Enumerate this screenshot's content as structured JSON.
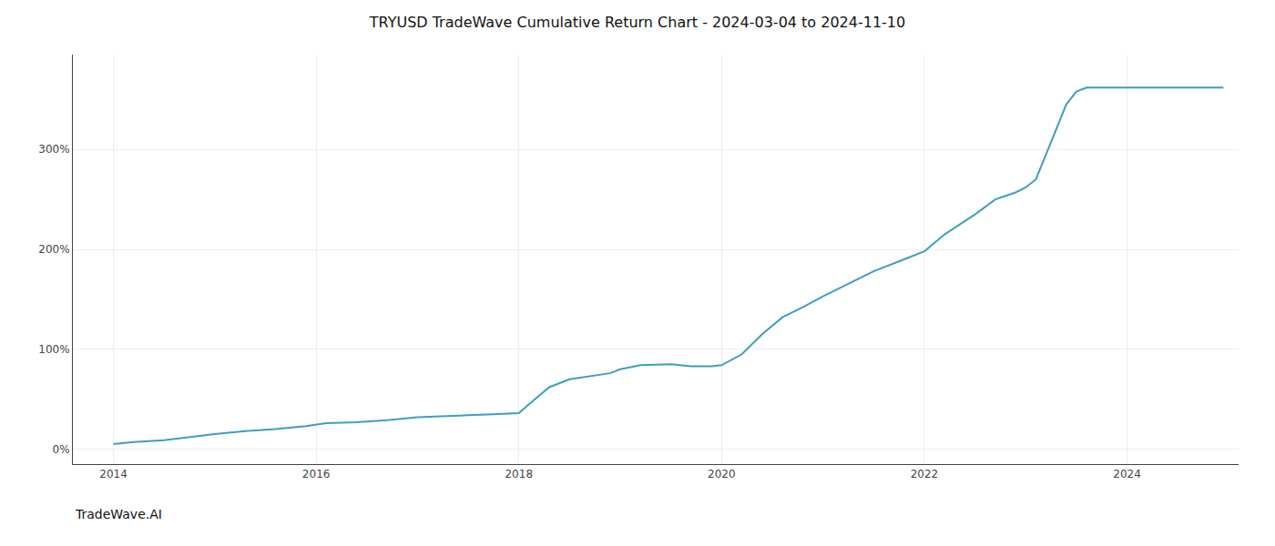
{
  "chart_data": {
    "type": "line",
    "title": "TRYUSD TradeWave Cumulative Return Chart - 2024-03-04 to 2024-11-10",
    "annotations": [
      "TradeWave.AI"
    ],
    "color": "#3d9fc0",
    "grid": true,
    "x": [
      2014.0,
      2014.2,
      2014.5,
      2014.8,
      2015.0,
      2015.3,
      2015.6,
      2015.9,
      2016.1,
      2016.4,
      2016.7,
      2017.0,
      2017.2,
      2017.5,
      2017.8,
      2018.0,
      2018.1,
      2018.3,
      2018.5,
      2018.7,
      2018.9,
      2019.0,
      2019.2,
      2019.5,
      2019.7,
      2019.9,
      2020.0,
      2020.2,
      2020.4,
      2020.6,
      2020.8,
      2021.0,
      2021.2,
      2021.5,
      2021.8,
      2022.0,
      2022.2,
      2022.5,
      2022.7,
      2022.9,
      2023.0,
      2023.1,
      2023.2,
      2023.3,
      2023.4,
      2023.5,
      2023.6,
      2023.8,
      2024.0,
      2024.2,
      2024.5,
      2024.8,
      2024.95
    ],
    "values": [
      5,
      7,
      9,
      13,
      15,
      18,
      20,
      23,
      26,
      27,
      29,
      32,
      33,
      34,
      35,
      36,
      45,
      62,
      70,
      73,
      76,
      80,
      84,
      85,
      83,
      83,
      84,
      95,
      115,
      132,
      142,
      153,
      163,
      178,
      190,
      198,
      215,
      235,
      250,
      257,
      262,
      270,
      295,
      320,
      345,
      358,
      362,
      362,
      362,
      362,
      362,
      362,
      362
    ],
    "xlim": [
      2013.6,
      2025.1
    ],
    "xticks": [
      2014,
      2016,
      2018,
      2020,
      2022,
      2024
    ],
    "ylim": [
      -15,
      395
    ],
    "yticks": [
      {
        "value": 0,
        "label": "0%"
      },
      {
        "value": 100,
        "label": "100%"
      },
      {
        "value": 200,
        "label": "200%"
      },
      {
        "value": 300,
        "label": "300%"
      }
    ]
  }
}
